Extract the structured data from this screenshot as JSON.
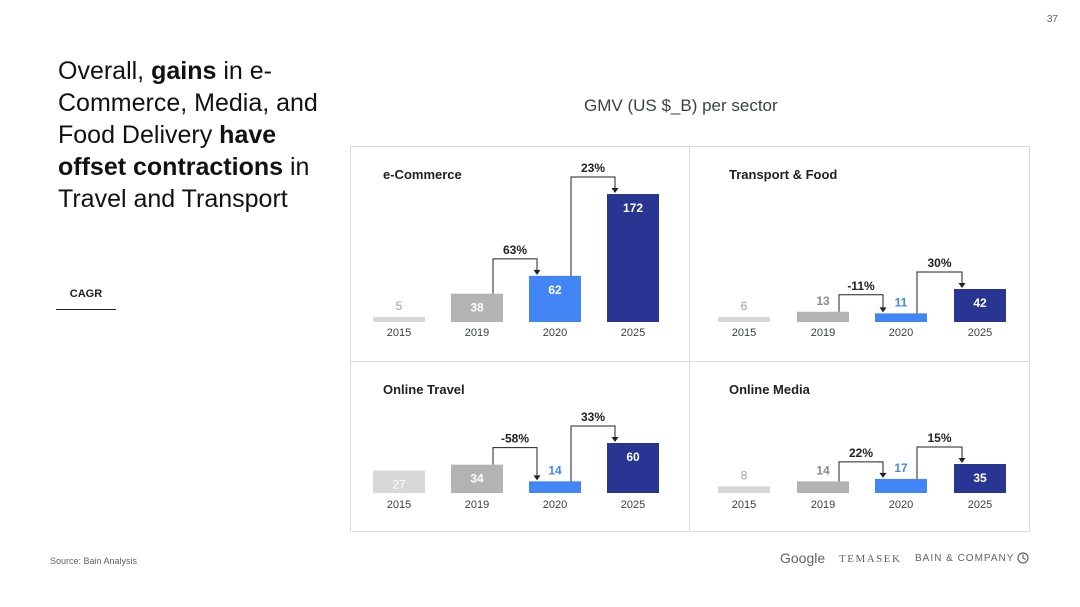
{
  "page_number": "37",
  "headline": {
    "parts": [
      {
        "text": "Overall, ",
        "bold": false
      },
      {
        "text": "gains",
        "bold": true
      },
      {
        "text": " in e-Commerce, Media, and Food Delivery ",
        "bold": false
      },
      {
        "text": "have offset contractions",
        "bold": true
      },
      {
        "text": " in Travel and Transport",
        "bold": false
      }
    ]
  },
  "cagr_tab": "CAGR",
  "figure_title": "GMV (US $_B) per sector",
  "source": "Source: Bain Analysis",
  "logos": {
    "google": "Google",
    "temasek": "TEMASEK",
    "bain": "BAIN & COMPANY"
  },
  "colors": {
    "2015": "#d8d8d8",
    "2019": "#b3b3b3",
    "2020": "#4285f4",
    "2025": "#283593"
  },
  "chart_data": [
    {
      "type": "bar",
      "title": "e-Commerce",
      "categories": [
        "2015",
        "2019",
        "2020",
        "2025"
      ],
      "values": [
        5,
        38,
        62,
        172
      ],
      "cagr": [
        {
          "from": "2019",
          "to": "2020",
          "label": "63%"
        },
        {
          "from": "2020",
          "to": "2025",
          "label": "23%"
        }
      ]
    },
    {
      "type": "bar",
      "title": "Transport & Food",
      "categories": [
        "2015",
        "2019",
        "2020",
        "2025"
      ],
      "values": [
        6,
        13,
        11,
        42
      ],
      "cagr": [
        {
          "from": "2019",
          "to": "2020",
          "label": "-11%"
        },
        {
          "from": "2020",
          "to": "2025",
          "label": "30%"
        }
      ]
    },
    {
      "type": "bar",
      "title": "Online Travel",
      "categories": [
        "2015",
        "2019",
        "2020",
        "2025"
      ],
      "values": [
        27,
        34,
        14,
        60
      ],
      "cagr": [
        {
          "from": "2019",
          "to": "2020",
          "label": "-58%"
        },
        {
          "from": "2020",
          "to": "2025",
          "label": "33%"
        }
      ]
    },
    {
      "type": "bar",
      "title": "Online Media",
      "categories": [
        "2015",
        "2019",
        "2020",
        "2025"
      ],
      "values": [
        8,
        14,
        17,
        35
      ],
      "cagr": [
        {
          "from": "2019",
          "to": "2020",
          "label": "22%"
        },
        {
          "from": "2020",
          "to": "2025",
          "label": "15%"
        }
      ]
    }
  ]
}
